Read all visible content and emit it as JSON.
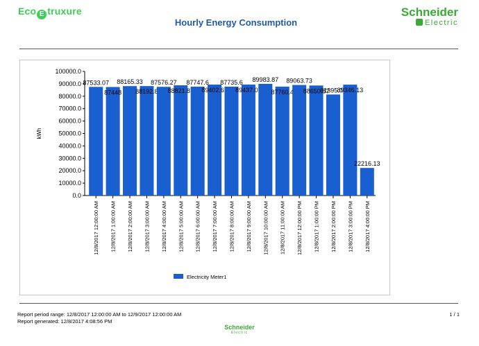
{
  "header": {
    "eco_logo_prefix": "Eco",
    "eco_logo_mark": "E",
    "eco_logo_suffix": "truxure",
    "title": "Hourly Energy Consumption",
    "brand_name": "Schneider",
    "brand_sub": "Electric"
  },
  "colors": {
    "bar": "#1a5fd0",
    "title": "#1f5aa8",
    "brand_green": "#3aa935",
    "eco_green": "#3dcd58"
  },
  "chart_data": {
    "type": "bar",
    "ylabel": "kWh",
    "ylim": [
      0,
      100000
    ],
    "yticks": [
      "0.0",
      "10000.0",
      "20000.0",
      "30000.0",
      "40000.0",
      "50000.0",
      "60000.0",
      "70000.0",
      "80000.0",
      "90000.0",
      "100000.0"
    ],
    "categories": [
      "12/8/2017 12:00:00 AM",
      "12/8/2017 1:00:00 AM",
      "12/8/2017 2:00:00 AM",
      "12/8/2017 3:00:00 AM",
      "12/8/2017 4:00:00 AM",
      "12/8/2017 5:00:00 AM",
      "12/8/2017 6:00:00 AM",
      "12/8/2017 7:00:00 AM",
      "12/8/2017 8:00:00 AM",
      "12/8/2017 9:00:00 AM",
      "12/8/2017 10:00:00 AM",
      "12/8/2017 11:00:00 AM",
      "12/8/2017 12:00:00 PM",
      "12/8/2017 1:00:00 PM",
      "12/8/2017 2:00:00 PM",
      "12/8/2017 3:00:00 PM",
      "12/8/2017 4:00:00 PM"
    ],
    "series": [
      {
        "name": "Electricity Meter1",
        "values": [
          87533.07,
          87448,
          88165.33,
          88192.8,
          87576.27,
          88821.87,
          87747.6,
          89402.67,
          87735.6,
          89437.07,
          89983.87,
          87760.4,
          89063.73,
          88650.87,
          81395.07,
          89346.13,
          22216.13
        ],
        "labels": [
          "87533.07",
          "87448",
          "88165.33",
          "88192.8",
          "87576.27",
          "88821.87",
          "87747.6",
          "89402.67",
          "87735.6",
          "89437.07",
          "89983.87",
          "87760.4",
          "89063.73",
          "88650.87",
          "81395.07",
          "89346.13",
          "22216.13"
        ]
      }
    ],
    "grid": false,
    "legend": "bottom"
  },
  "footer": {
    "period_range": "Report period range: 12/8/2017 12:00:00 AM to 12/9/2017 12:00:00 AM",
    "generated": "Report generated: 12/8/2017 4:08:56 PM",
    "page": "1 / 1",
    "brand_name": "Schneider",
    "brand_sub": "Electric"
  }
}
